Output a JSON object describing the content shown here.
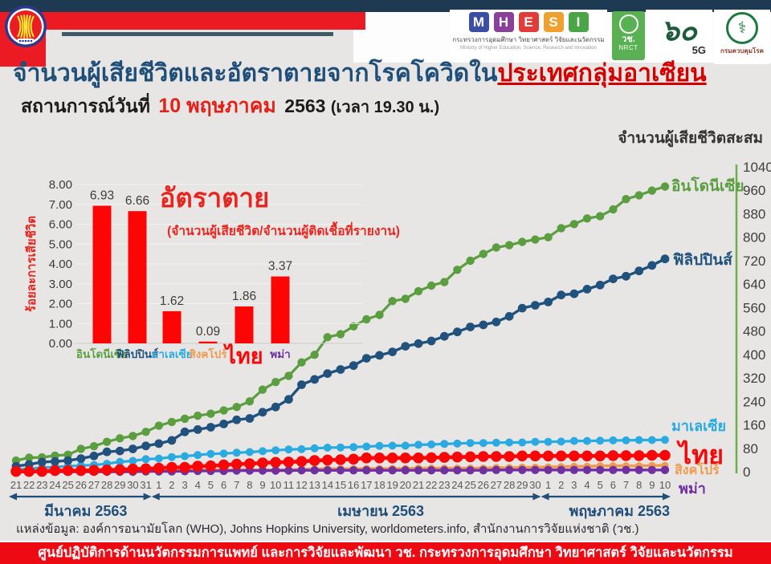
{
  "colors": {
    "background": "#e7e6e4",
    "navy_bar": "#1d3a52",
    "red_bar": "#ec1b23",
    "title_navy": "#1f4e79",
    "accent_red": "#e32119",
    "banner_red": "#ee0a12",
    "axis_green": "#6fae4b",
    "month_navy": "#1f4e79"
  },
  "header": {
    "asean_logo": "asean-emblem",
    "mhesi": {
      "letters": [
        {
          "char": "M",
          "color": "#3a4fa3"
        },
        {
          "char": "H",
          "color": "#8a3f98"
        },
        {
          "char": "E",
          "color": "#e23c39"
        },
        {
          "char": "S",
          "color": "#f0a02c"
        },
        {
          "char": "I",
          "color": "#4aa546"
        }
      ],
      "line1": "กระทรวงการอุดมศึกษา วิทยาศาสตร์ วิจัยและนวัตกรรม",
      "line2": "Ministry of Higher Education, Science, Research and Innovation"
    },
    "nrct": {
      "thai": "วช.",
      "eng": "NRCT"
    },
    "sixty": {
      "numeral": "๖๐",
      "sub": "5G"
    },
    "ddc": {
      "label": "กรมควบคุมโรค"
    }
  },
  "title": {
    "main": "จำนวนผู้เสียชีวิตและอัตราตายจากโรคโควิดใน",
    "highlight": "ประเทศกลุ่มอาเซียน"
  },
  "subtitle": {
    "prefix": "สถานการณ์วันที่",
    "date": "10 พฤษภาคม",
    "year": "2563",
    "time": "(เวลา 19.30 น.)"
  },
  "right_axis_title": "จำนวนผู้เสียชีวิตสะสม",
  "chart_data": [
    {
      "id": "death-rate-bars",
      "type": "bar",
      "title": "อัตราตาย",
      "subtitle": "(จำนวนผู้เสียชีวิต/จำนวนผู้ติดเชื้อที่รายงาน)",
      "ylabel": "ร้อยละการเสียชีวิต",
      "ylim": [
        0,
        8
      ],
      "ytick_step": 1,
      "bar_color": "#fe0505",
      "categories": [
        "อินโดนีเซีย",
        "ฟิลิปปินส์",
        "มาเลเซีย",
        "สิงคโปร์",
        "ไทย",
        "พม่า"
      ],
      "category_colors": [
        "#5b9e40",
        "#21527e",
        "#29abe2",
        "#ef9a4e",
        "#f90708",
        "#7030a0"
      ],
      "values": [
        6.93,
        6.66,
        1.62,
        0.09,
        1.86,
        3.37
      ]
    },
    {
      "id": "cumulative-deaths-lines",
      "type": "line",
      "ylim": [
        0,
        1040
      ],
      "ytick_step": 80,
      "legend_position": "right-end-of-line",
      "grid": false,
      "x_dates": [
        "21",
        "22",
        "23",
        "24",
        "25",
        "26",
        "27",
        "28",
        "29",
        "30",
        "31",
        "1",
        "2",
        "3",
        "4",
        "5",
        "6",
        "7",
        "8",
        "9",
        "10",
        "11",
        "12",
        "13",
        "14",
        "15",
        "16",
        "17",
        "18",
        "19",
        "20",
        "21",
        "22",
        "23",
        "24",
        "25",
        "26",
        "27",
        "28",
        "29",
        "30",
        "1",
        "2",
        "3",
        "4",
        "5",
        "6",
        "7",
        "8",
        "9",
        "10"
      ],
      "month_spans": [
        {
          "label": "มีนาคม 2563",
          "from": 0,
          "to": 10
        },
        {
          "label": "เมษายน 2563",
          "from": 11,
          "to": 40
        },
        {
          "label": "พฤษภาคม 2563",
          "from": 41,
          "to": 50
        }
      ],
      "series": [
        {
          "name": "อินโดนีเซีย",
          "color": "#5b9e40",
          "values": [
            38,
            48,
            49,
            55,
            58,
            78,
            87,
            102,
            114,
            122,
            136,
            157,
            170,
            181,
            191,
            198,
            209,
            221,
            240,
            280,
            306,
            327,
            373,
            399,
            459,
            469,
            496,
            520,
            535,
            582,
            590,
            616,
            635,
            647,
            689,
            720,
            743,
            765,
            773,
            784,
            792,
            800,
            831,
            845,
            864,
            872,
            895,
            930,
            943,
            959,
            973
          ]
        },
        {
          "name": "ฟิลิปปินส์",
          "color": "#21527e",
          "values": [
            19,
            25,
            33,
            35,
            38,
            45,
            54,
            68,
            71,
            78,
            88,
            96,
            107,
            136,
            144,
            152,
            163,
            177,
            182,
            203,
            221,
            247,
            297,
            315,
            335,
            349,
            362,
            387,
            397,
            409,
            428,
            437,
            446,
            462,
            477,
            494,
            501,
            511,
            530,
            558,
            568,
            579,
            603,
            607,
            623,
            637,
            658,
            667,
            685,
            704,
            726
          ]
        },
        {
          "name": "มาเลเซีย",
          "color": "#29abe2",
          "values": [
            8,
            10,
            14,
            16,
            19,
            21,
            23,
            27,
            34,
            37,
            43,
            45,
            50,
            53,
            57,
            61,
            62,
            65,
            67,
            70,
            73,
            76,
            77,
            80,
            82,
            83,
            84,
            86,
            88,
            89,
            89,
            92,
            93,
            95,
            96,
            98,
            98,
            99,
            100,
            100,
            102,
            102,
            103,
            105,
            105,
            106,
            107,
            107,
            108,
            108,
            109
          ]
        },
        {
          "name": "ไทย",
          "color": "#f90708",
          "values": [
            1,
            1,
            1,
            4,
            4,
            4,
            5,
            6,
            7,
            9,
            10,
            12,
            15,
            15,
            19,
            20,
            23,
            26,
            27,
            30,
            32,
            33,
            35,
            38,
            40,
            41,
            43,
            47,
            47,
            47,
            47,
            47,
            48,
            49,
            50,
            51,
            52,
            52,
            52,
            54,
            54,
            54,
            54,
            54,
            54,
            54,
            55,
            55,
            55,
            56,
            56
          ]
        },
        {
          "name": "สิงคโปร์",
          "color": "#ef9a4e",
          "values": [
            2,
            2,
            2,
            2,
            2,
            2,
            2,
            2,
            3,
            3,
            3,
            3,
            4,
            5,
            6,
            6,
            6,
            6,
            6,
            6,
            6,
            7,
            8,
            9,
            10,
            10,
            10,
            11,
            11,
            11,
            11,
            12,
            12,
            12,
            12,
            12,
            12,
            14,
            14,
            15,
            15,
            16,
            17,
            18,
            18,
            20,
            20,
            20,
            20,
            21,
            21
          ]
        },
        {
          "name": "พม่า",
          "color": "#7030a0",
          "values": [
            0,
            0,
            0,
            0,
            0,
            0,
            0,
            0,
            0,
            0,
            1,
            1,
            1,
            2,
            3,
            3,
            3,
            4,
            4,
            4,
            4,
            4,
            5,
            5,
            5,
            5,
            5,
            5,
            5,
            5,
            5,
            5,
            5,
            5,
            5,
            5,
            5,
            6,
            6,
            6,
            6,
            6,
            6,
            6,
            6,
            6,
            6,
            6,
            6,
            6,
            6
          ]
        }
      ]
    }
  ],
  "footer": {
    "source": "แหล่งข้อมูล: องค์การอนามัยโลก (WHO), Johns Hopkins University, worldometers.info, สำนักงานการวิจัยแห่งชาติ (วช.)",
    "banner": "ศูนย์ปฏิบัติการด้านนวัตกรรมการแพทย์ และการวิจัยและพัฒนา  วช.   กระทรวงการอุดมศึกษา วิทยาศาสตร์ วิจัยและนวัตกรรม"
  }
}
